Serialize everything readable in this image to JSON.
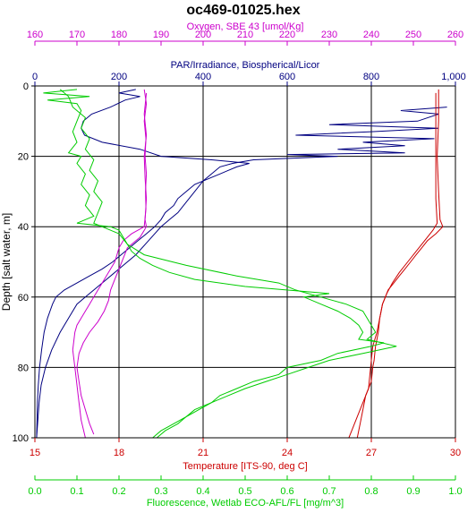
{
  "chart_data": {
    "type": "line",
    "title": "oc469-01025.hex",
    "grid": true,
    "legend": "none",
    "y_axis": {
      "label": "Depth [salt water, m]",
      "range": [
        0,
        100
      ],
      "inverted": true,
      "ticks": [
        "0",
        "20",
        "40",
        "60",
        "80",
        "100"
      ]
    },
    "x_axes": [
      {
        "id": "oxygen",
        "position": "top-outer",
        "label": "Oxygen, SBE 43 [umol/Kg]",
        "range": [
          160,
          260
        ],
        "color": "#cc00cc",
        "ticks": [
          "160",
          "170",
          "180",
          "190",
          "200",
          "210",
          "220",
          "230",
          "240",
          "250",
          "260"
        ]
      },
      {
        "id": "par",
        "position": "top-inner",
        "label": "PAR/Irradiance, Biospherical/Licor",
        "range": [
          0,
          1000
        ],
        "color": "#000080",
        "ticks": [
          "0",
          "200",
          "400",
          "600",
          "800",
          "1,000"
        ]
      },
      {
        "id": "temperature",
        "position": "bottom-inner",
        "label": "Temperature [ITS-90, deg C]",
        "range": [
          15,
          30
        ],
        "color": "#cc0000",
        "ticks": [
          "15",
          "18",
          "21",
          "24",
          "27",
          "30"
        ]
      },
      {
        "id": "fluorescence",
        "position": "bottom-outer",
        "label": "Fluorescence, Wetlab ECO-AFL/FL [mg/m^3]",
        "range": [
          0,
          1
        ],
        "color": "#00cc00",
        "ticks": [
          "0.0",
          "0.1",
          "0.2",
          "0.3",
          "0.4",
          "0.5",
          "0.6",
          "0.7",
          "0.8",
          "0.9",
          "1.0"
        ]
      }
    ],
    "series": [
      {
        "axis": "par",
        "color": "#000080",
        "points": [
          [
            1,
            240
          ],
          [
            2,
            200
          ],
          [
            3,
            250
          ],
          [
            4,
            215
          ],
          [
            6,
            180
          ],
          [
            8,
            135
          ],
          [
            10,
            115
          ],
          [
            12,
            110
          ],
          [
            14,
            118
          ],
          [
            16,
            160
          ],
          [
            18,
            250
          ],
          [
            20,
            300
          ],
          [
            21,
            420
          ],
          [
            22,
            510
          ],
          [
            23,
            480
          ],
          [
            24,
            460
          ],
          [
            25,
            440
          ],
          [
            26,
            420
          ],
          [
            28,
            380
          ],
          [
            30,
            360
          ],
          [
            32,
            340
          ],
          [
            34,
            330
          ],
          [
            36,
            310
          ],
          [
            38,
            300
          ],
          [
            40,
            285
          ],
          [
            42,
            265
          ],
          [
            44,
            245
          ],
          [
            46,
            225
          ],
          [
            48,
            205
          ],
          [
            50,
            185
          ],
          [
            52,
            160
          ],
          [
            54,
            130
          ],
          [
            56,
            100
          ],
          [
            58,
            70
          ],
          [
            60,
            50
          ],
          [
            62,
            42
          ],
          [
            64,
            36
          ],
          [
            66,
            30
          ],
          [
            70,
            22
          ],
          [
            75,
            16
          ],
          [
            80,
            11
          ],
          [
            85,
            8
          ],
          [
            90,
            6
          ],
          [
            95,
            5
          ],
          [
            100,
            4
          ]
        ]
      },
      {
        "axis": "par",
        "color": "#000080",
        "points": [
          [
            6,
            980
          ],
          [
            7,
            870
          ],
          [
            8,
            960
          ],
          [
            10,
            910
          ],
          [
            11,
            700
          ],
          [
            12,
            960
          ],
          [
            13,
            800
          ],
          [
            14,
            620
          ],
          [
            15,
            950
          ],
          [
            16,
            780
          ],
          [
            17,
            880
          ],
          [
            18,
            720
          ],
          [
            19,
            880
          ],
          [
            19.5,
            600
          ],
          [
            20,
            720
          ],
          [
            21,
            520
          ],
          [
            22,
            470
          ],
          [
            23,
            440
          ],
          [
            25,
            420
          ],
          [
            27,
            400
          ],
          [
            30,
            380
          ],
          [
            33,
            360
          ],
          [
            36,
            340
          ],
          [
            38,
            320
          ],
          [
            40,
            300
          ],
          [
            44,
            270
          ],
          [
            48,
            240
          ],
          [
            52,
            200
          ],
          [
            56,
            160
          ],
          [
            60,
            120
          ],
          [
            62,
            100
          ],
          [
            66,
            80
          ],
          [
            70,
            60
          ],
          [
            75,
            40
          ],
          [
            80,
            25
          ],
          [
            85,
            15
          ],
          [
            90,
            10
          ],
          [
            100,
            4
          ]
        ]
      },
      {
        "axis": "oxygen",
        "color": "#cc00cc",
        "points": [
          [
            1,
            186
          ],
          [
            5,
            186.5
          ],
          [
            10,
            186
          ],
          [
            15,
            186.4
          ],
          [
            20,
            186.2
          ],
          [
            25,
            186.5
          ],
          [
            30,
            186.3
          ],
          [
            35,
            186.4
          ],
          [
            40,
            186
          ],
          [
            42,
            183
          ],
          [
            44,
            181
          ],
          [
            46,
            180
          ],
          [
            48,
            179.5
          ],
          [
            50,
            179
          ],
          [
            52,
            178
          ],
          [
            54,
            177
          ],
          [
            56,
            176
          ],
          [
            58,
            175
          ],
          [
            60,
            174
          ],
          [
            62,
            173
          ],
          [
            64,
            172
          ],
          [
            66,
            171
          ],
          [
            68,
            170
          ],
          [
            70,
            169.5
          ],
          [
            75,
            169
          ],
          [
            80,
            169.5
          ],
          [
            85,
            170
          ],
          [
            90,
            170.5
          ],
          [
            95,
            171
          ],
          [
            100,
            172
          ]
        ]
      },
      {
        "axis": "oxygen",
        "color": "#cc00cc",
        "points": [
          [
            2,
            186.5
          ],
          [
            8,
            186
          ],
          [
            14,
            186.5
          ],
          [
            20,
            186
          ],
          [
            26,
            186.2
          ],
          [
            32,
            186.5
          ],
          [
            38,
            186.2
          ],
          [
            40,
            186.5
          ],
          [
            43,
            185
          ],
          [
            46,
            182
          ],
          [
            49,
            181
          ],
          [
            52,
            180
          ],
          [
            55,
            179
          ],
          [
            58,
            178
          ],
          [
            61,
            177.5
          ],
          [
            64,
            176.5
          ],
          [
            67,
            175
          ],
          [
            70,
            173
          ],
          [
            73,
            171.5
          ],
          [
            76,
            170.5
          ],
          [
            80,
            170
          ],
          [
            84,
            170.5
          ],
          [
            88,
            171
          ],
          [
            92,
            172
          ],
          [
            96,
            173
          ],
          [
            99,
            174
          ]
        ]
      },
      {
        "axis": "temperature",
        "color": "#cc0000",
        "points": [
          [
            1,
            29.4
          ],
          [
            10,
            29.4
          ],
          [
            20,
            29.35
          ],
          [
            30,
            29.4
          ],
          [
            38,
            29.45
          ],
          [
            40,
            29.55
          ],
          [
            42,
            29.3
          ],
          [
            44,
            29.0
          ],
          [
            46,
            28.8
          ],
          [
            48,
            28.6
          ],
          [
            50,
            28.4
          ],
          [
            52,
            28.2
          ],
          [
            54,
            28.0
          ],
          [
            56,
            27.8
          ],
          [
            58,
            27.6
          ],
          [
            60,
            27.5
          ],
          [
            62,
            27.4
          ],
          [
            64,
            27.35
          ],
          [
            66,
            27.3
          ],
          [
            70,
            27.25
          ],
          [
            72,
            27.2
          ],
          [
            74,
            27.15
          ],
          [
            78,
            27.1
          ],
          [
            80,
            27.05
          ],
          [
            84,
            27.0
          ],
          [
            88,
            26.8
          ],
          [
            92,
            26.7
          ],
          [
            96,
            26.6
          ],
          [
            100,
            26.5
          ]
        ]
      },
      {
        "axis": "temperature",
        "color": "#cc0000",
        "points": [
          [
            2,
            29.3
          ],
          [
            12,
            29.3
          ],
          [
            22,
            29.3
          ],
          [
            32,
            29.3
          ],
          [
            39,
            29.35
          ],
          [
            41,
            29.2
          ],
          [
            44,
            28.9
          ],
          [
            47,
            28.6
          ],
          [
            50,
            28.3
          ],
          [
            53,
            28.0
          ],
          [
            56,
            27.75
          ],
          [
            59,
            27.55
          ],
          [
            62,
            27.4
          ],
          [
            66,
            27.3
          ],
          [
            70,
            27.2
          ],
          [
            74,
            27.05
          ],
          [
            78,
            27.0
          ],
          [
            82,
            26.95
          ],
          [
            86,
            26.9
          ],
          [
            90,
            26.7
          ],
          [
            94,
            26.5
          ],
          [
            98,
            26.3
          ],
          [
            100,
            26.2
          ]
        ]
      },
      {
        "axis": "fluorescence",
        "color": "#00cc00",
        "points": [
          [
            1,
            0.1
          ],
          [
            2,
            0.02
          ],
          [
            3,
            0.13
          ],
          [
            4,
            0.03
          ],
          [
            5,
            0.1
          ],
          [
            7,
            0.11
          ],
          [
            10,
            0.1
          ],
          [
            13,
            0.09
          ],
          [
            16,
            0.1
          ],
          [
            19,
            0.08
          ],
          [
            20,
            0.11
          ],
          [
            22,
            0.1
          ],
          [
            25,
            0.12
          ],
          [
            28,
            0.11
          ],
          [
            31,
            0.13
          ],
          [
            34,
            0.12
          ],
          [
            37,
            0.14
          ],
          [
            39,
            0.1
          ],
          [
            40,
            0.18
          ],
          [
            41,
            0.2
          ],
          [
            43,
            0.21
          ],
          [
            45,
            0.22
          ],
          [
            47,
            0.23
          ],
          [
            49,
            0.25
          ],
          [
            51,
            0.28
          ],
          [
            53,
            0.32
          ],
          [
            55,
            0.38
          ],
          [
            57,
            0.5
          ],
          [
            59,
            0.7
          ],
          [
            60,
            0.64
          ],
          [
            62,
            0.68
          ],
          [
            64,
            0.72
          ],
          [
            66,
            0.75
          ],
          [
            68,
            0.77
          ],
          [
            70,
            0.78
          ],
          [
            72,
            0.77
          ],
          [
            73,
            0.83
          ],
          [
            74,
            0.8
          ],
          [
            76,
            0.72
          ],
          [
            78,
            0.68
          ],
          [
            80,
            0.6
          ],
          [
            82,
            0.58
          ],
          [
            84,
            0.52
          ],
          [
            86,
            0.48
          ],
          [
            88,
            0.44
          ],
          [
            90,
            0.42
          ],
          [
            92,
            0.38
          ],
          [
            94,
            0.36
          ],
          [
            96,
            0.33
          ],
          [
            98,
            0.3
          ],
          [
            100,
            0.28
          ]
        ]
      },
      {
        "axis": "fluorescence",
        "color": "#00cc00",
        "points": [
          [
            1,
            0.06
          ],
          [
            3,
            0.08
          ],
          [
            6,
            0.09
          ],
          [
            9,
            0.12
          ],
          [
            12,
            0.11
          ],
          [
            15,
            0.13
          ],
          [
            18,
            0.12
          ],
          [
            21,
            0.14
          ],
          [
            24,
            0.13
          ],
          [
            27,
            0.15
          ],
          [
            30,
            0.14
          ],
          [
            33,
            0.16
          ],
          [
            36,
            0.15
          ],
          [
            39,
            0.14
          ],
          [
            42,
            0.2
          ],
          [
            45,
            0.22
          ],
          [
            48,
            0.26
          ],
          [
            51,
            0.36
          ],
          [
            54,
            0.48
          ],
          [
            56,
            0.58
          ],
          [
            58,
            0.62
          ],
          [
            60,
            0.68
          ],
          [
            62,
            0.74
          ],
          [
            64,
            0.78
          ],
          [
            66,
            0.79
          ],
          [
            68,
            0.8
          ],
          [
            70,
            0.81
          ],
          [
            72,
            0.79
          ],
          [
            74,
            0.86
          ],
          [
            76,
            0.78
          ],
          [
            78,
            0.7
          ],
          [
            80,
            0.65
          ],
          [
            82,
            0.6
          ],
          [
            84,
            0.55
          ],
          [
            86,
            0.5
          ],
          [
            88,
            0.46
          ],
          [
            90,
            0.42
          ],
          [
            92,
            0.39
          ],
          [
            94,
            0.36
          ],
          [
            96,
            0.34
          ],
          [
            98,
            0.31
          ],
          [
            100,
            0.29
          ]
        ]
      }
    ]
  }
}
